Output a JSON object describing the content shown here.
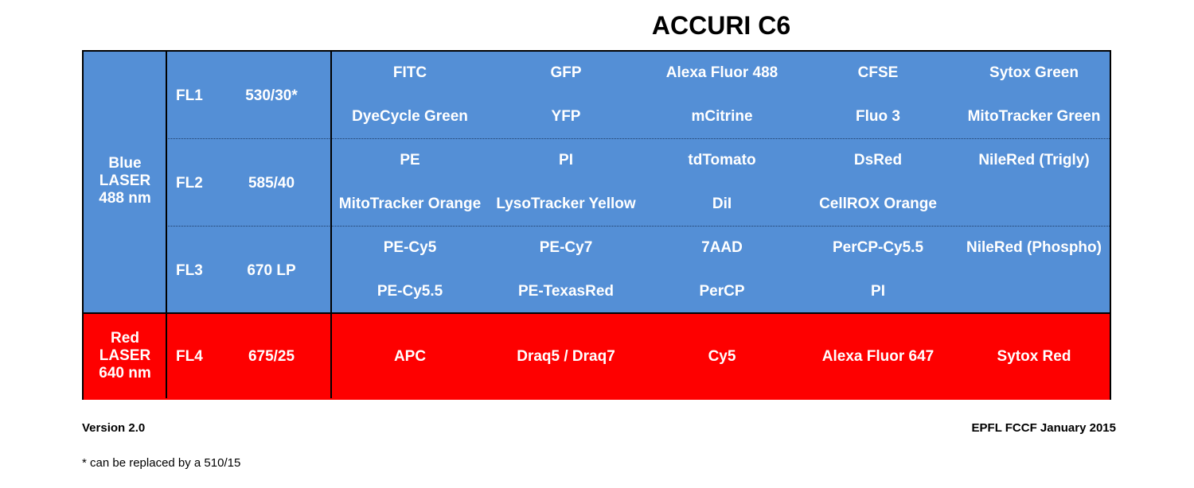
{
  "title": "ACCURI C6",
  "lasers": [
    {
      "lines": [
        "Blue",
        "LASER",
        "488 nm"
      ],
      "color": "#548fd6"
    },
    {
      "lines": [
        "Red",
        "LASER",
        "640 nm"
      ],
      "color": "#fe0000"
    }
  ],
  "channels": [
    {
      "name": "FL1",
      "filter": "530/30*",
      "dyes": [
        [
          "FITC",
          "GFP",
          "Alexa Fluor 488",
          "CFSE",
          "Sytox Green"
        ],
        [
          "DyeCycle Green",
          "YFP",
          "mCitrine",
          "Fluo 3",
          "MitoTracker Green"
        ]
      ]
    },
    {
      "name": "FL2",
      "filter": "585/40",
      "dyes": [
        [
          "PE",
          "PI",
          "tdTomato",
          "DsRed",
          "NileRed (Trigly)"
        ],
        [
          "MitoTracker Orange",
          "LysoTracker Yellow",
          "DiI",
          "CellROX Orange",
          ""
        ]
      ]
    },
    {
      "name": "FL3",
      "filter": "670 LP",
      "dyes": [
        [
          "PE-Cy5",
          "PE-Cy7",
          "7AAD",
          "PerCP-Cy5.5",
          "NileRed (Phospho)"
        ],
        [
          "PE-Cy5.5",
          "PE-TexasRed",
          "PerCP",
          "PI",
          ""
        ]
      ]
    },
    {
      "name": "FL4",
      "filter": "675/25",
      "dyes": [
        [
          "APC",
          "Draq5 / Draq7",
          "Cy5",
          "Alexa Fluor 647",
          "Sytox Red"
        ]
      ]
    }
  ],
  "footer": {
    "version": "Version 2.0",
    "credit": "EPFL FCCF January 2015",
    "note": "* can be replaced by a 510/15"
  }
}
